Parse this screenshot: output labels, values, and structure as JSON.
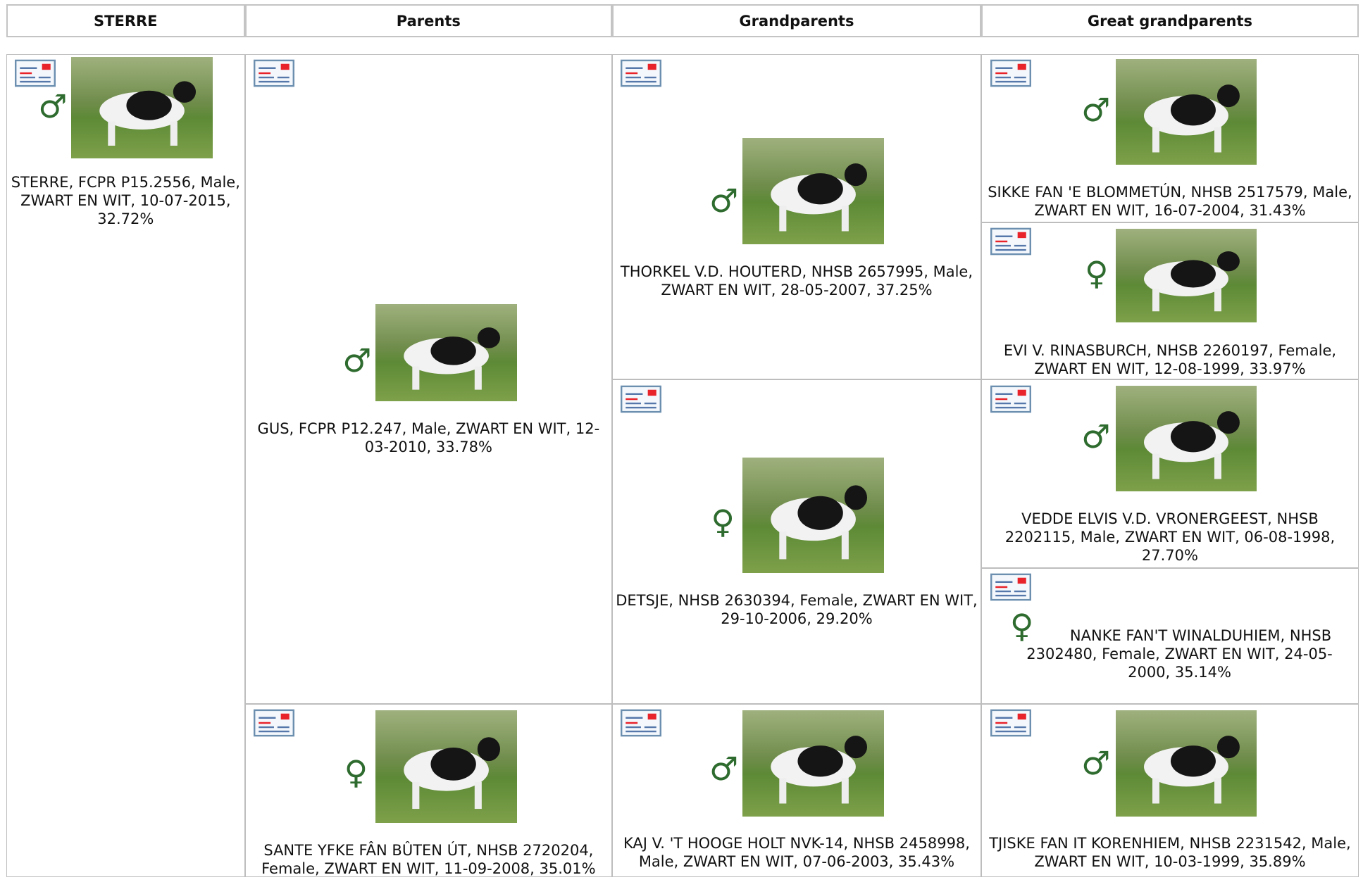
{
  "header": {
    "columns": [
      "STERRE",
      "Parents",
      "Grandparents",
      "Great grandparents"
    ]
  },
  "dogs": [
    {
      "symbol": "♂",
      "text": "STERRE, FCPR P15.2556, Male, ZWART EN WIT, 10-07-2015, 32.72%"
    },
    {
      "symbol": "♂",
      "text": "GUS, FCPR P12.247, Male, ZWART EN WIT, 12-03-2010, 33.78%"
    },
    {
      "symbol": "♀",
      "text": "SANTE YFKE FÂN BÛTEN ÚT, NHSB 2720204, Female, ZWART EN WIT, 11-09-2008, 35.01%"
    },
    {
      "symbol": "♂",
      "text": "THORKEL V.D. HOUTERD, NHSB 2657995, Male, ZWART EN WIT, 28-05-2007, 37.25%"
    },
    {
      "symbol": "♀",
      "text": "DETSJE, NHSB 2630394, Female, ZWART EN WIT, 29-10-2006, 29.20%"
    },
    {
      "symbol": "♂",
      "text": "KAJ V. 'T HOOGE HOLT NVK-14, NHSB 2458998, Male, ZWART EN WIT, 07-06-2003, 35.43%"
    },
    {
      "symbol": "♂",
      "text": "SIKKE FAN 'E BLOMMETÚN, NHSB 2517579, Male, ZWART EN WIT, 16-07-2004, 31.43%"
    },
    {
      "symbol": "♀",
      "text": "EVI V. RINASBURCH, NHSB 2260197, Female, ZWART EN WIT, 12-08-1999, 33.97%"
    },
    {
      "symbol": "♂",
      "text": "VEDDE ELVIS V.D. VRONERGEEST, NHSB 2202115, Male, ZWART EN WIT, 06-08-1998, 27.70%"
    },
    {
      "symbol": "♀",
      "text": "NANKE FAN'T WINALDUHIEM, NHSB 2302480, Female, ZWART EN WIT, 24-05-2000, 35.14%"
    },
    {
      "symbol": "♂",
      "text": "TJISKE FAN IT KORENHIEM, NHSB 2231542, Male, ZWART EN WIT, 10-03-1999, 35.89%"
    }
  ]
}
